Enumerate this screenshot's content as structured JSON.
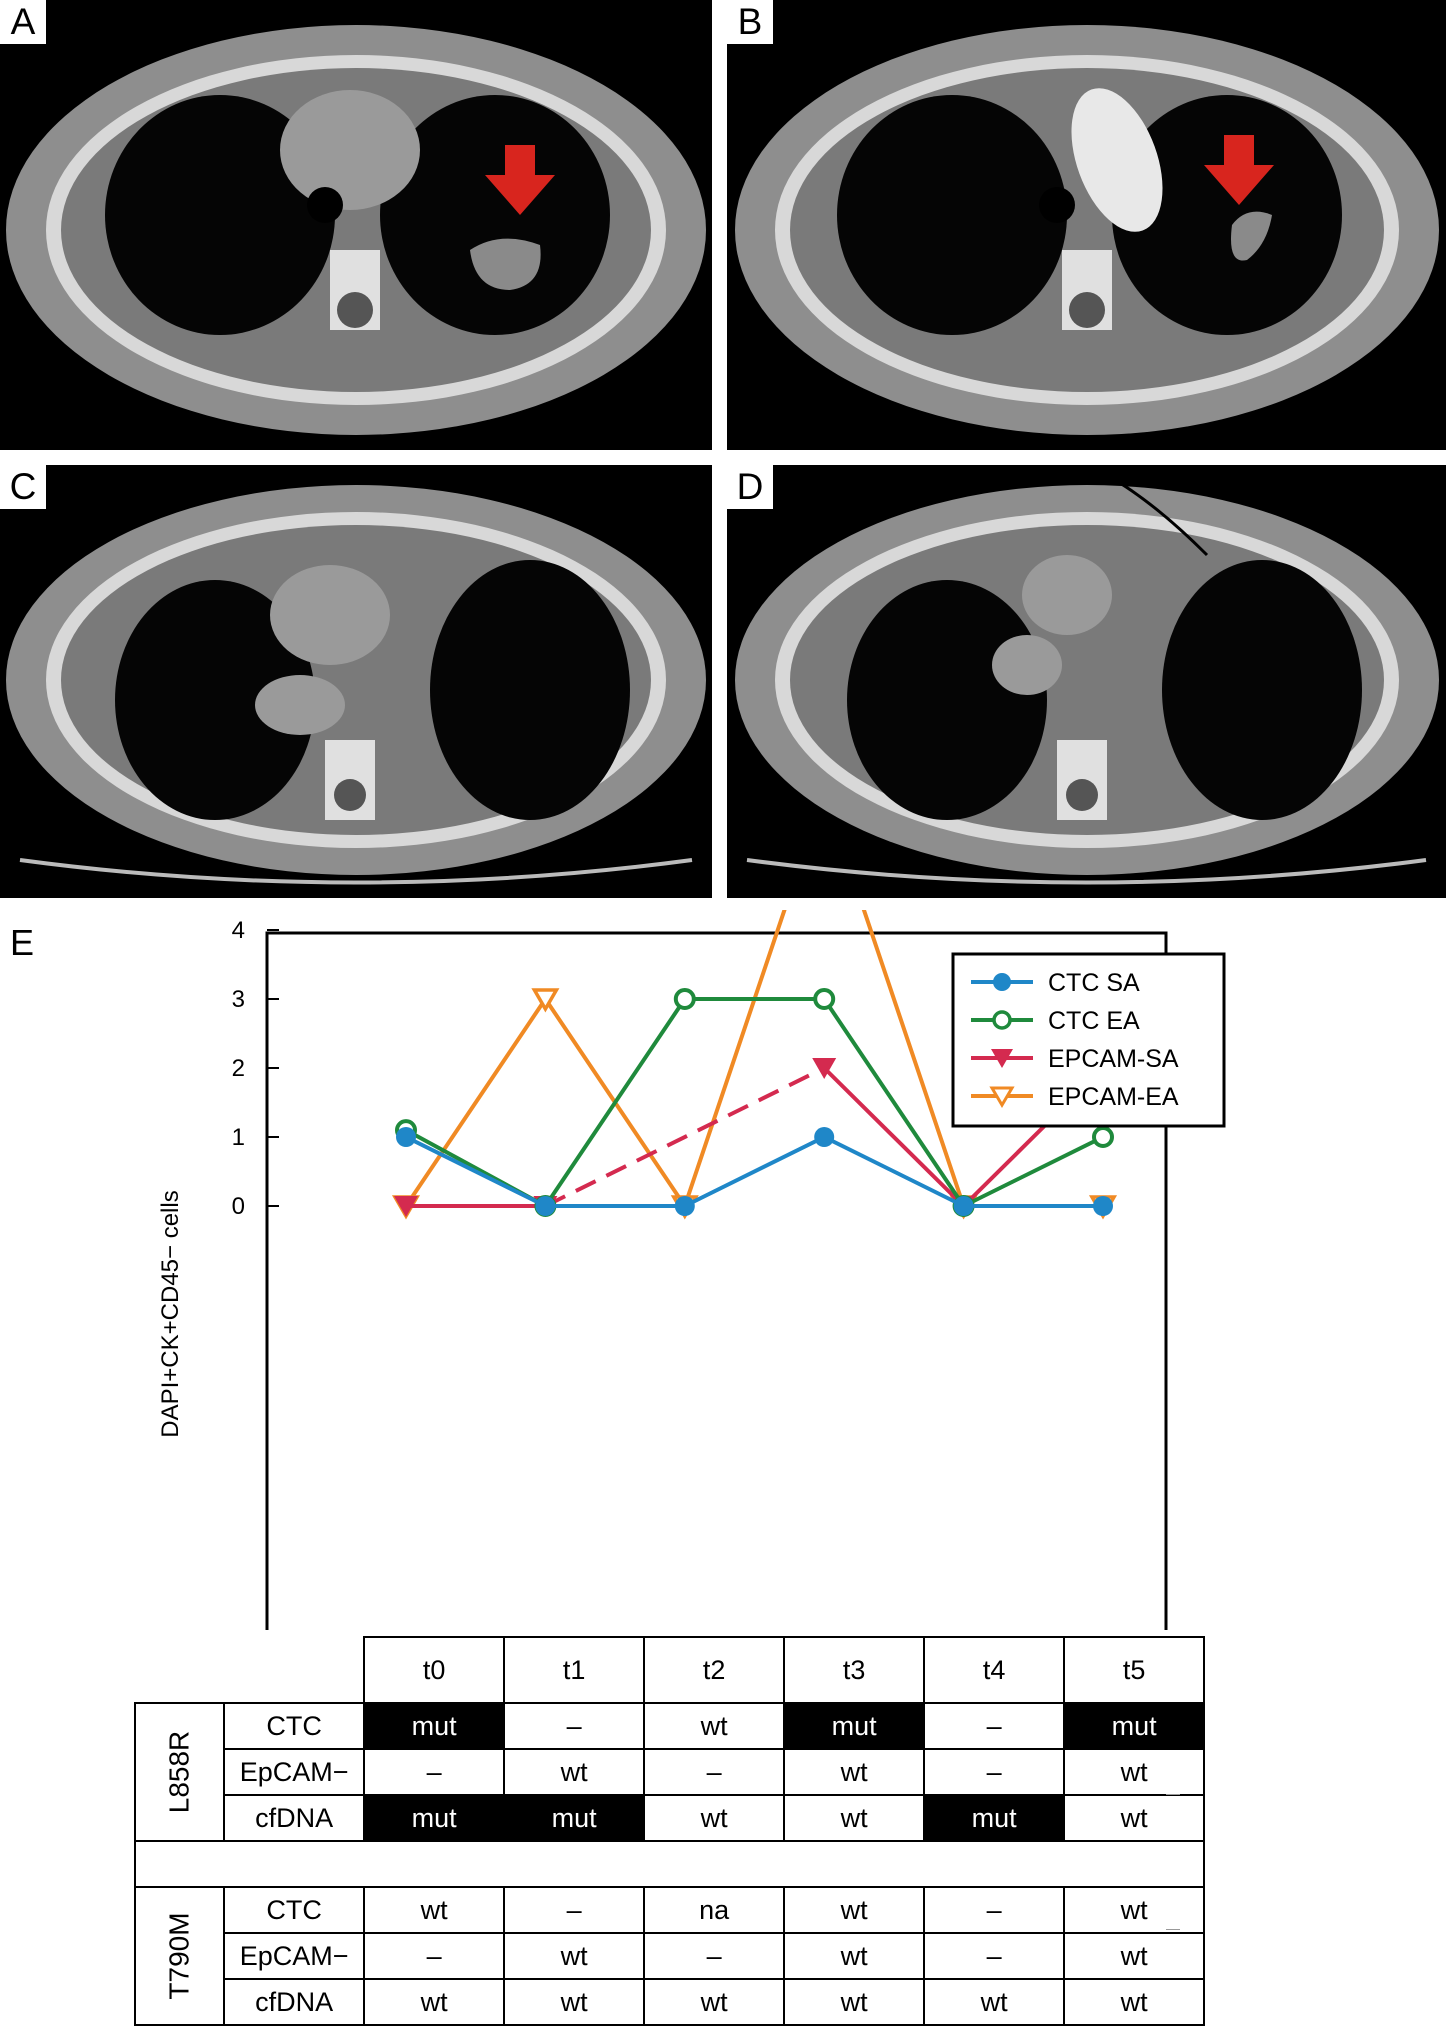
{
  "panels": {
    "A": {
      "label": "A"
    },
    "B": {
      "label": "B"
    },
    "C": {
      "label": "C"
    },
    "D": {
      "label": "D"
    }
  },
  "panel_e_label": "E",
  "chart_data": {
    "type": "line",
    "categories": [
      "t0",
      "t1",
      "t2",
      "t3",
      "t4",
      "t5"
    ],
    "ylabel": "DAPI+CK+CD45− cells",
    "ylim": [
      -1,
      7
    ],
    "yticks": [
      0,
      1,
      2,
      3,
      4,
      5,
      6,
      7
    ],
    "legend_position": "top-right",
    "series": [
      {
        "name": "CTC SA",
        "values": [
          1,
          0,
          0,
          1,
          0,
          0
        ],
        "color": "#1f87c8",
        "marker": "filled-circle"
      },
      {
        "name": "CTC EA",
        "values": [
          1.1,
          0,
          3,
          3,
          0,
          1
        ],
        "color": "#1f8a3c",
        "marker": "open-circle"
      },
      {
        "name": "EPCAM-SA",
        "values": [
          0,
          0,
          null,
          2,
          0,
          2
        ],
        "color": "#d42a4f",
        "marker": "filled-triangle-down",
        "dashed_segment": [
          "t1",
          "t3"
        ]
      },
      {
        "name": "EPCAM-EA",
        "values": [
          0,
          3,
          0,
          6,
          0,
          0
        ],
        "color": "#f08a24",
        "marker": "open-triangle-down"
      }
    ]
  },
  "table": {
    "columns": [
      "t0",
      "t1",
      "t2",
      "t3",
      "t4",
      "t5"
    ],
    "groups": [
      {
        "gene": "L858R",
        "rows": [
          {
            "name": "CTC",
            "cells": [
              "mut",
              "–",
              "wt",
              "mut",
              "–",
              "mut"
            ]
          },
          {
            "name": "EpCAM−",
            "cells": [
              "–",
              "wt",
              "–",
              "wt",
              "–",
              "wt"
            ]
          },
          {
            "name": "cfDNA",
            "cells": [
              "mut",
              "mut",
              "wt",
              "wt",
              "mut",
              "wt"
            ]
          }
        ]
      },
      {
        "gene": "T790M",
        "rows": [
          {
            "name": "CTC",
            "cells": [
              "wt",
              "–",
              "na",
              "wt",
              "–",
              "wt"
            ]
          },
          {
            "name": "EpCAM−",
            "cells": [
              "–",
              "wt",
              "–",
              "wt",
              "–",
              "wt"
            ]
          },
          {
            "name": "cfDNA",
            "cells": [
              "wt",
              "wt",
              "wt",
              "wt",
              "wt",
              "wt"
            ]
          }
        ]
      }
    ]
  }
}
